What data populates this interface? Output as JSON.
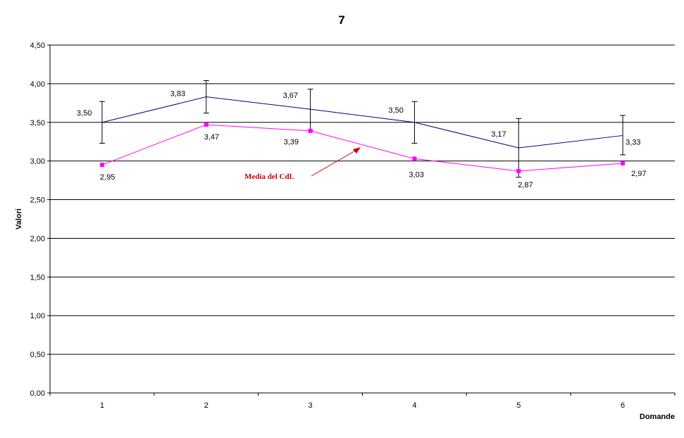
{
  "chart_data": {
    "type": "line",
    "title": "7",
    "xlabel": "Domande",
    "ylabel": "Valori",
    "categories": [
      "1",
      "2",
      "3",
      "4",
      "5",
      "6"
    ],
    "ylim": [
      0,
      4.5
    ],
    "yticks": [
      "0,00",
      "0,50",
      "1,00",
      "1,50",
      "2,00",
      "2,50",
      "3,00",
      "3,50",
      "4,00",
      "4,50"
    ],
    "grid": true,
    "series": [
      {
        "values": [
          3.5,
          3.83,
          3.67,
          3.5,
          3.17,
          3.33
        ],
        "labels": [
          "3,50",
          "3,83",
          "3,67",
          "3,50",
          "3,17",
          "3,33"
        ],
        "error_low": [
          3.23,
          3.62,
          3.39,
          3.23,
          2.79,
          3.08
        ],
        "error_high": [
          3.77,
          4.04,
          3.93,
          3.77,
          3.55,
          3.59
        ],
        "color": "#000080"
      },
      {
        "values": [
          2.95,
          3.47,
          3.39,
          3.03,
          2.87,
          2.97
        ],
        "labels": [
          "2,95",
          "3,47",
          "3,39",
          "3,03",
          "2,87",
          "2,97"
        ],
        "color": "#ff00ff"
      }
    ],
    "annotation": {
      "text": "Media del CdL",
      "color": "#c00000"
    }
  }
}
